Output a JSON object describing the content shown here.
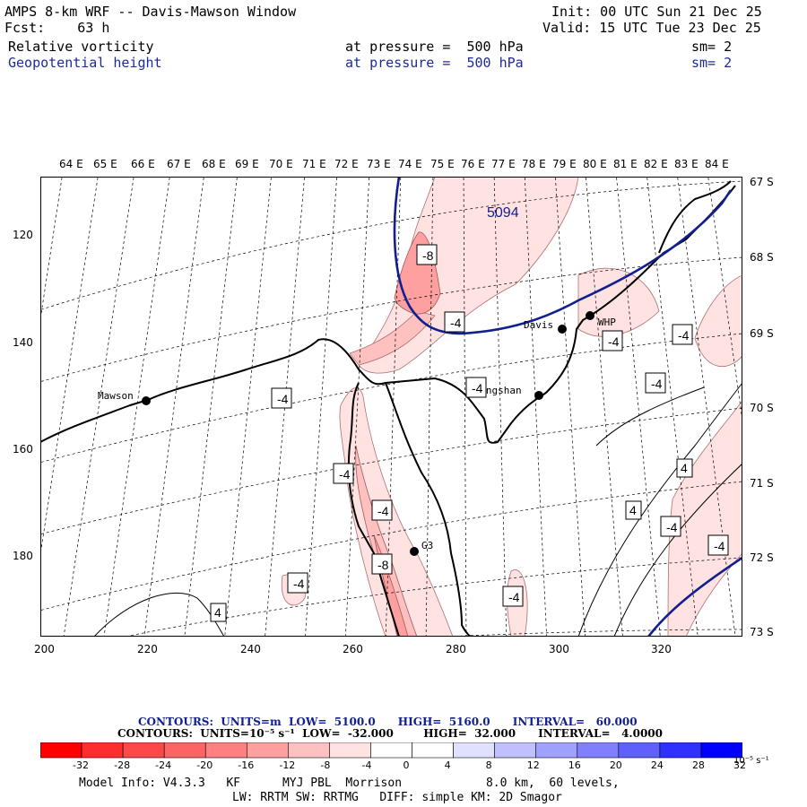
{
  "header": {
    "title": "AMPS 8-km WRF -- Davis-Mawson Window",
    "init": "Init: 00 UTC Sun 21 Dec 25",
    "forecast": "Fcst:    63 h",
    "valid": "Valid: 15 UTC Tue 23 Dec 25",
    "field1": {
      "name": "Relative vorticity",
      "level": "at pressure =  500 hPa",
      "smooth": "sm= 2"
    },
    "field2": {
      "name": "Geopotential height",
      "level": "at pressure =  500 hPa",
      "smooth": "sm= 2"
    }
  },
  "map": {
    "lon_labels": [
      "64 E",
      "65 E",
      "66 E",
      "67 E",
      "68 E",
      "69 E",
      "70 E",
      "71 E",
      "72 E",
      "73 E",
      "74 E",
      "75 E",
      "76 E",
      "77 E",
      "78 E",
      "79 E",
      "80 E",
      "81 E",
      "82 E",
      "83 E",
      "84 E"
    ],
    "lat_labels": [
      "67 S",
      "68 S",
      "69 S",
      "70 S",
      "71 S",
      "72 S",
      "73 S"
    ],
    "x_ticks": [
      "200",
      "220",
      "240",
      "260",
      "280",
      "300",
      "320"
    ],
    "y_ticks": [
      "120",
      "140",
      "160",
      "180"
    ],
    "stations": [
      "Mawson",
      "Davis",
      "WHP",
      "Zhongshan",
      "G3"
    ],
    "height_label": "5094",
    "vort_labels": [
      "-8",
      "-4",
      "-4",
      "-4",
      "-4",
      "-4",
      "-4",
      "-8",
      "-4",
      "-4",
      "-4",
      "-4",
      "-4",
      "-4",
      "4",
      "4",
      "4"
    ]
  },
  "contour_info": {
    "line1": "CONTOURS:  UNITS=m  LOW=  5100.0      HIGH=  5160.0      INTERVAL=   60.000",
    "line2": "CONTOURS:  UNITS=10⁻⁵ s⁻¹  LOW=  -32.000        HIGH=  32.000      INTERVAL=   4.0000"
  },
  "colorbar": {
    "labels": [
      "-32",
      "-28",
      "-24",
      "-20",
      "-16",
      "-12",
      "-8",
      "-4",
      "0",
      "4",
      "8",
      "12",
      "16",
      "20",
      "24",
      "28",
      "32"
    ],
    "unit": "10⁻⁵ s⁻¹",
    "colors": [
      "#ff0000",
      "#ff2e2e",
      "#ff4848",
      "#ff6464",
      "#ff8080",
      "#ffa0a0",
      "#ffc0c0",
      "#ffe2e2",
      "#ffffff",
      "#ffffff",
      "#e0e0ff",
      "#c0c0ff",
      "#a0a0ff",
      "#8080ff",
      "#6060ff",
      "#3030ff",
      "#0000ff"
    ]
  },
  "footer": {
    "line1": "Model Info: V4.3.3   KF      MYJ PBL  Morrison            8.0 km,  60 levels,",
    "line2": "LW: RRTM SW: RRTMG   DIFF: simple KM: 2D Smagor"
  }
}
